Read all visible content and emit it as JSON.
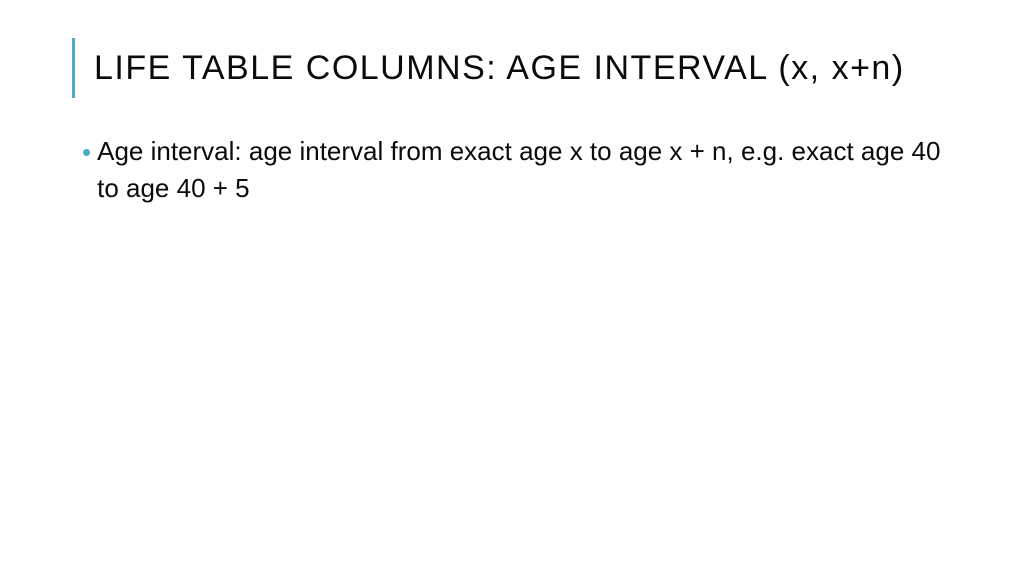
{
  "slide": {
    "title": "LIFE TABLE COLUMNS: AGE INTERVAL (x, x+n)",
    "body_text": "Age interval: age interval from exact age x to age x + n, e.g. exact age 40 to age 40 + 5",
    "accent_color": "#4bacc6",
    "text_color": "#0b0b0b",
    "bullet_color": "#4bacc6",
    "background_color": "#ffffff",
    "title_fontsize": 34,
    "title_letter_spacing": 1.5,
    "body_fontsize": 26,
    "accent_bar_width": 3,
    "accent_bar_height": 60
  }
}
